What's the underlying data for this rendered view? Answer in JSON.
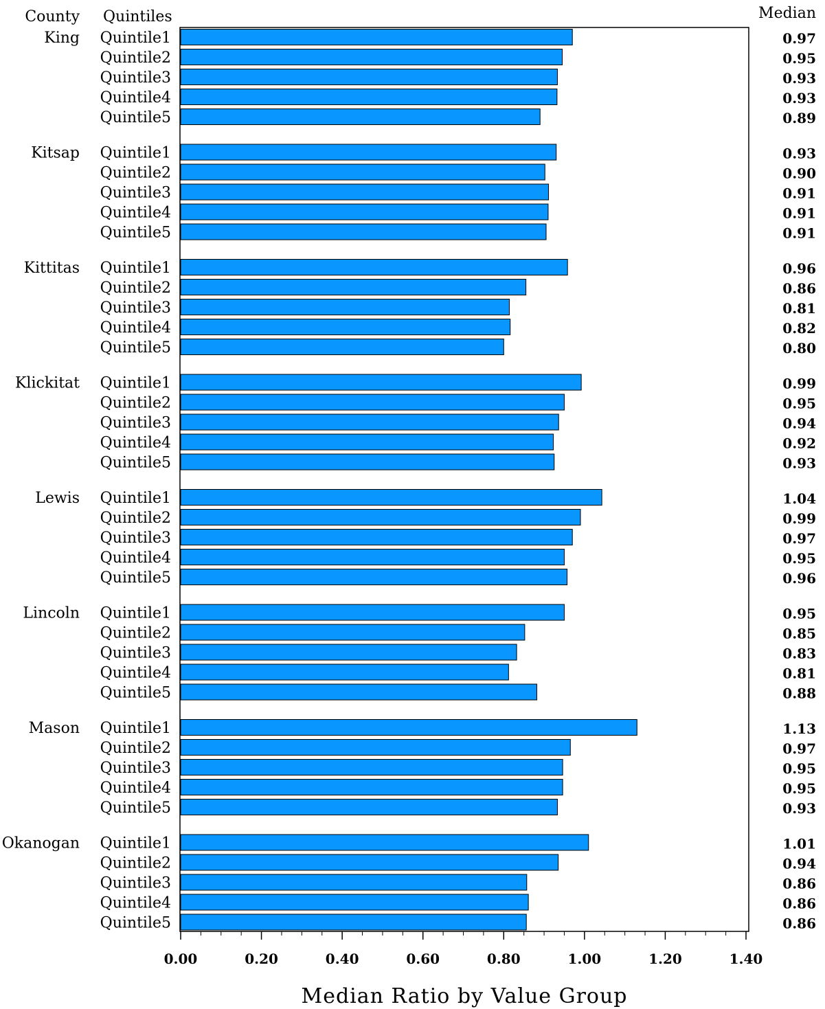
{
  "chart_data": {
    "type": "bar",
    "orientation": "horizontal",
    "headers": {
      "county": "County",
      "quintiles": "Quintiles",
      "median": "Median"
    },
    "xlabel": "Median Ratio by Value Group",
    "xlim": [
      0,
      1.4
    ],
    "xticks": [
      "0.00",
      "0.20",
      "0.40",
      "0.60",
      "0.80",
      "1.00",
      "1.20",
      "1.40"
    ],
    "groups": [
      {
        "county": "King",
        "rows": [
          {
            "label": "Quintile1",
            "value": 0.97,
            "text": "0.97"
          },
          {
            "label": "Quintile2",
            "value": 0.945,
            "text": "0.95"
          },
          {
            "label": "Quintile3",
            "value": 0.933,
            "text": "0.93"
          },
          {
            "label": "Quintile4",
            "value": 0.932,
            "text": "0.93"
          },
          {
            "label": "Quintile5",
            "value": 0.89,
            "text": "0.89"
          }
        ]
      },
      {
        "county": "Kitsap",
        "rows": [
          {
            "label": "Quintile1",
            "value": 0.93,
            "text": "0.93"
          },
          {
            "label": "Quintile2",
            "value": 0.902,
            "text": "0.90"
          },
          {
            "label": "Quintile3",
            "value": 0.911,
            "text": "0.91"
          },
          {
            "label": "Quintile4",
            "value": 0.91,
            "text": "0.91"
          },
          {
            "label": "Quintile5",
            "value": 0.905,
            "text": "0.91"
          }
        ]
      },
      {
        "county": "Kittitas",
        "rows": [
          {
            "label": "Quintile1",
            "value": 0.958,
            "text": "0.96"
          },
          {
            "label": "Quintile2",
            "value": 0.855,
            "text": "0.86"
          },
          {
            "label": "Quintile3",
            "value": 0.814,
            "text": "0.81"
          },
          {
            "label": "Quintile4",
            "value": 0.816,
            "text": "0.82"
          },
          {
            "label": "Quintile5",
            "value": 0.8,
            "text": "0.80"
          }
        ]
      },
      {
        "county": "Klickitat",
        "rows": [
          {
            "label": "Quintile1",
            "value": 0.992,
            "text": "0.99"
          },
          {
            "label": "Quintile2",
            "value": 0.95,
            "text": "0.95"
          },
          {
            "label": "Quintile3",
            "value": 0.936,
            "text": "0.94"
          },
          {
            "label": "Quintile4",
            "value": 0.923,
            "text": "0.92"
          },
          {
            "label": "Quintile5",
            "value": 0.925,
            "text": "0.93"
          }
        ]
      },
      {
        "county": "Lewis",
        "rows": [
          {
            "label": "Quintile1",
            "value": 1.043,
            "text": "1.04"
          },
          {
            "label": "Quintile2",
            "value": 0.99,
            "text": "0.99"
          },
          {
            "label": "Quintile3",
            "value": 0.97,
            "text": "0.97"
          },
          {
            "label": "Quintile4",
            "value": 0.95,
            "text": "0.95"
          },
          {
            "label": "Quintile5",
            "value": 0.957,
            "text": "0.96"
          }
        ]
      },
      {
        "county": "Lincoln",
        "rows": [
          {
            "label": "Quintile1",
            "value": 0.95,
            "text": "0.95"
          },
          {
            "label": "Quintile2",
            "value": 0.852,
            "text": "0.85"
          },
          {
            "label": "Quintile3",
            "value": 0.832,
            "text": "0.83"
          },
          {
            "label": "Quintile4",
            "value": 0.812,
            "text": "0.81"
          },
          {
            "label": "Quintile5",
            "value": 0.882,
            "text": "0.88"
          }
        ]
      },
      {
        "county": "Mason",
        "rows": [
          {
            "label": "Quintile1",
            "value": 1.13,
            "text": "1.13"
          },
          {
            "label": "Quintile2",
            "value": 0.965,
            "text": "0.97"
          },
          {
            "label": "Quintile3",
            "value": 0.946,
            "text": "0.95"
          },
          {
            "label": "Quintile4",
            "value": 0.946,
            "text": "0.95"
          },
          {
            "label": "Quintile5",
            "value": 0.933,
            "text": "0.93"
          }
        ]
      },
      {
        "county": "Okanogan",
        "rows": [
          {
            "label": "Quintile1",
            "value": 1.01,
            "text": "1.01"
          },
          {
            "label": "Quintile2",
            "value": 0.935,
            "text": "0.94"
          },
          {
            "label": "Quintile3",
            "value": 0.857,
            "text": "0.86"
          },
          {
            "label": "Quintile4",
            "value": 0.861,
            "text": "0.86"
          },
          {
            "label": "Quintile5",
            "value": 0.856,
            "text": "0.86"
          }
        ]
      }
    ]
  }
}
